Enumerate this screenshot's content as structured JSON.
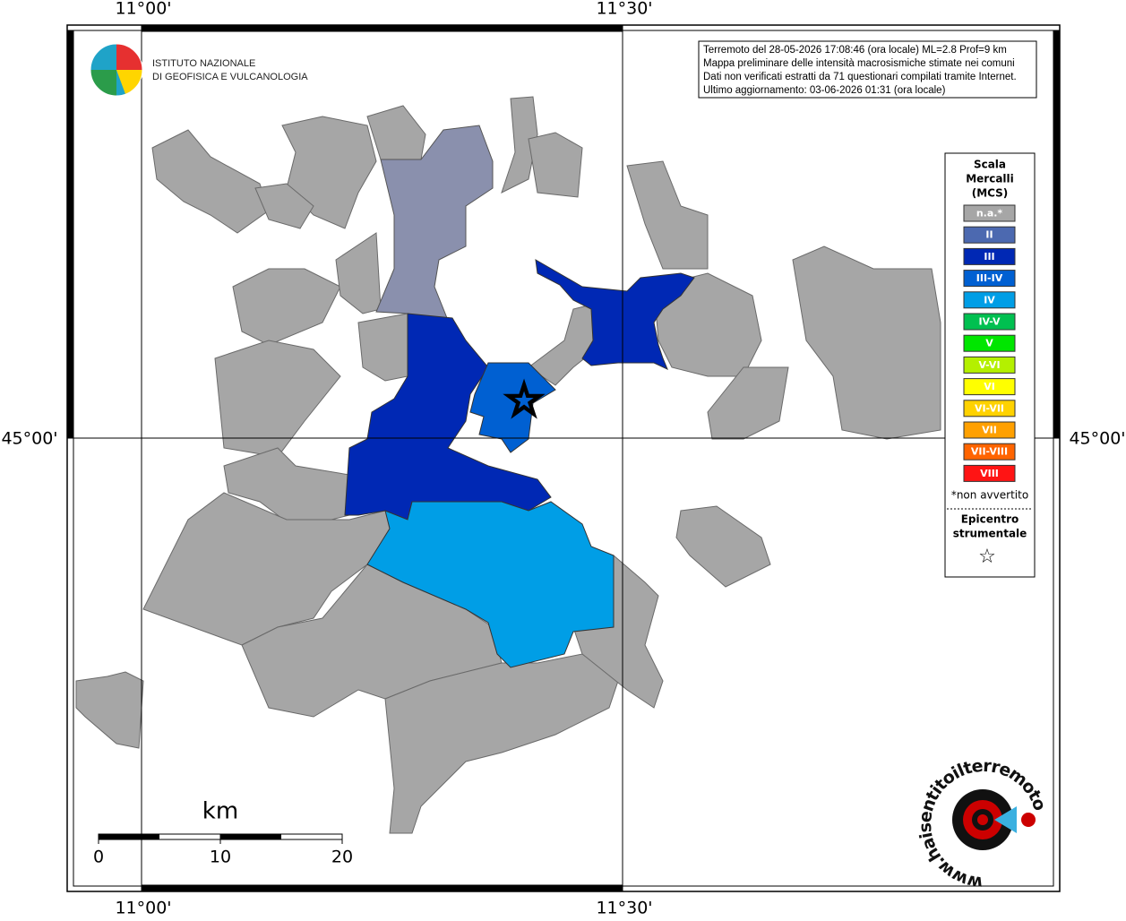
{
  "axes": {
    "top": [
      "11°00'",
      "11°30'"
    ],
    "bottom": [
      "11°00'",
      "11°30'"
    ],
    "left": "45°00'",
    "right": "45°00'"
  },
  "logo": {
    "line1": "ISTITUTO NAZIONALE",
    "line2": "DI GEOFISICA E VULCANOLOGIA"
  },
  "info": [
    "Terremoto del 28-05-2026 17:08:46 (ora locale) ML=2.8 Prof=9 km",
    "Mappa preliminare delle intensità macrosismiche stimate nei comuni",
    "Dati non verificati estratti da 71 questionari compilati tramite Internet.",
    "Ultimo aggiornamento: 03-06-2026 01:31 (ora locale)"
  ],
  "legend": {
    "title": [
      "Scala",
      "Mercalli",
      "(MCS)"
    ],
    "items": [
      {
        "label": "n.a.*",
        "color": "#a6a6a6"
      },
      {
        "label": "II",
        "color": "#4c69b0"
      },
      {
        "label": "III",
        "color": "#0028b4"
      },
      {
        "label": "III-IV",
        "color": "#0060d2"
      },
      {
        "label": "IV",
        "color": "#009ee6"
      },
      {
        "label": "IV-V",
        "color": "#00c050"
      },
      {
        "label": "V",
        "color": "#00e600"
      },
      {
        "label": "V-VI",
        "color": "#b4f000"
      },
      {
        "label": "VI",
        "color": "#ffff00"
      },
      {
        "label": "VI-VII",
        "color": "#ffd200"
      },
      {
        "label": "VII",
        "color": "#ffa000"
      },
      {
        "label": "VII-VIII",
        "color": "#ff6400"
      },
      {
        "label": "VIII",
        "color": "#ff1414"
      }
    ],
    "note": "*non avvertito",
    "epicenter": [
      "Epicentro",
      "strumentale"
    ]
  },
  "scale_bar": {
    "unit": "km",
    "ticks": [
      0,
      10,
      20
    ]
  },
  "site": "www.haisentitoilterremoto.it"
}
